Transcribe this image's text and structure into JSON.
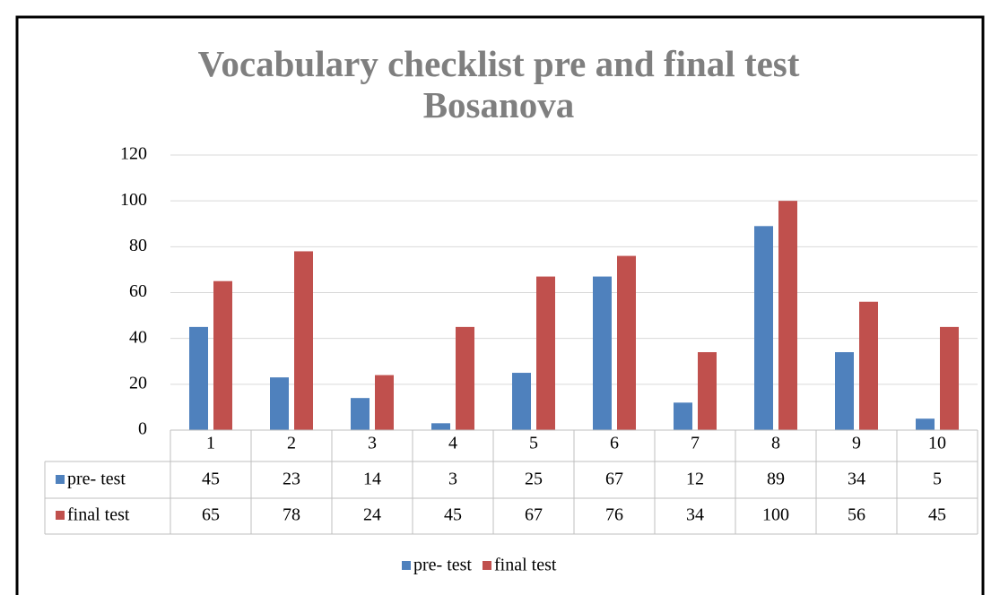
{
  "chart_data": {
    "type": "bar",
    "title": "Vocabulary checklist pre and final test Bosanova",
    "categories": [
      "1",
      "2",
      "3",
      "4",
      "5",
      "6",
      "7",
      "8",
      "9",
      "10"
    ],
    "series": [
      {
        "name": "pre- test",
        "color": "#4f81bd",
        "values": [
          45,
          23,
          14,
          3,
          25,
          67,
          12,
          89,
          34,
          5
        ]
      },
      {
        "name": "final test",
        "color": "#c0504d",
        "values": [
          65,
          78,
          24,
          45,
          67,
          76,
          34,
          100,
          56,
          45
        ]
      }
    ],
    "ylim": [
      0,
      120
    ],
    "yticks": [
      0,
      20,
      40,
      60,
      80,
      100,
      120
    ],
    "grid": true,
    "legend": "bottom",
    "data_table": true
  }
}
